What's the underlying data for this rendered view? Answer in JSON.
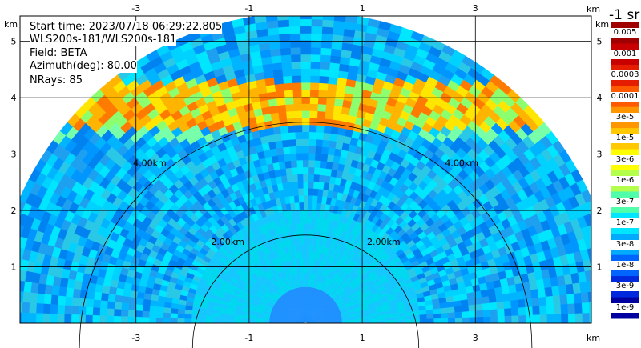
{
  "info": {
    "start_time": "Start time: 2023/07/18 06:29:22.805",
    "instrument": "WLS200s-181/WLS200s-181",
    "field": "Field: BETA",
    "azimuth": "Azimuth(deg): 80.00",
    "nrays": "NRays: 85"
  },
  "units": {
    "x_top_right": "km",
    "x_bottom_right": "km",
    "y_left_top": "km",
    "y_right_top": "km",
    "colorbar": "-1 sr"
  },
  "chart_data": {
    "type": "heatmap",
    "projection": "RHI-style half disk",
    "x_ticks": [
      "-3",
      "-1",
      "1",
      "3"
    ],
    "y_ticks": [
      "1",
      "2",
      "3",
      "4",
      "5"
    ],
    "xlim": [
      -5.05,
      5.05
    ],
    "ylim": [
      0,
      5.45
    ],
    "range_rings": [
      {
        "label": "2.00km",
        "radius_km": 2
      },
      {
        "label": "4.00km",
        "radius_km": 4
      }
    ],
    "colorbar": {
      "labels": [
        "0.005",
        "0.001",
        "0.0003",
        "0.0001",
        "3e-5",
        "1e-5",
        "3e-6",
        "1e-6",
        "3e-7",
        "1e-7",
        "3e-8",
        "1e-8",
        "3e-9",
        "1e-9"
      ],
      "colors": [
        "#a00000",
        "#c80000",
        "#e61e00",
        "#ff5a00",
        "#ff9600",
        "#ffc800",
        "#ffff00",
        "#b4ff4b",
        "#50ffaa",
        "#00e6ff",
        "#00aaff",
        "#0064ff",
        "#0028dc",
        "#0000a0"
      ]
    },
    "aerosol_layer": {
      "height_km_min": 3.5,
      "height_km_max": 4.3,
      "beta": "3e-5"
    }
  }
}
